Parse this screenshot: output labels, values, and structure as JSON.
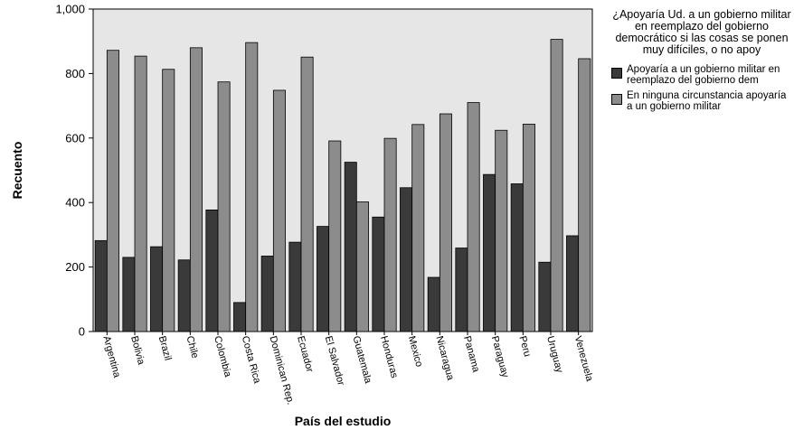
{
  "chart_data": {
    "type": "bar",
    "ylabel": "Recuento",
    "xlabel": "País del estudio",
    "legend_title": "¿Apoyaría Ud. a un gobierno militar en reemplazo del gobierno democrático si las cosas se ponen muy difíciles, o no apoy",
    "legend_position": "right",
    "ylim": [
      0,
      1000
    ],
    "yticks": [
      "0",
      "200",
      "400",
      "600",
      "800",
      "1,000"
    ],
    "grid": false,
    "categories": [
      "Argentina",
      "Bolivia",
      "Brazil",
      "Chile",
      "Colombia",
      "Costa Rica",
      "Dominican Rep.",
      "Ecuador",
      "El Salvador",
      "Guatemala",
      "Honduras",
      "Mexico",
      "Nicaragua",
      "Panama",
      "Paraguay",
      "Peru",
      "Uruguay",
      "Venezuela"
    ],
    "series": [
      {
        "name": "Apoyaría a un gobierno militar en reemplazo del gobierno dem",
        "color": "#3a3a3a",
        "values": [
          282,
          230,
          263,
          222,
          377,
          90,
          234,
          277,
          326,
          525,
          355,
          446,
          168,
          259,
          487,
          458,
          215,
          297
        ]
      },
      {
        "name": "En ninguna circunstancia apoyaría a un gobierno militar",
        "color": "#8c8c8c",
        "values": [
          872,
          854,
          813,
          880,
          774,
          896,
          748,
          851,
          591,
          402,
          599,
          642,
          675,
          710,
          624,
          643,
          906,
          846
        ]
      }
    ]
  },
  "plot_background": "#e6e6e6"
}
